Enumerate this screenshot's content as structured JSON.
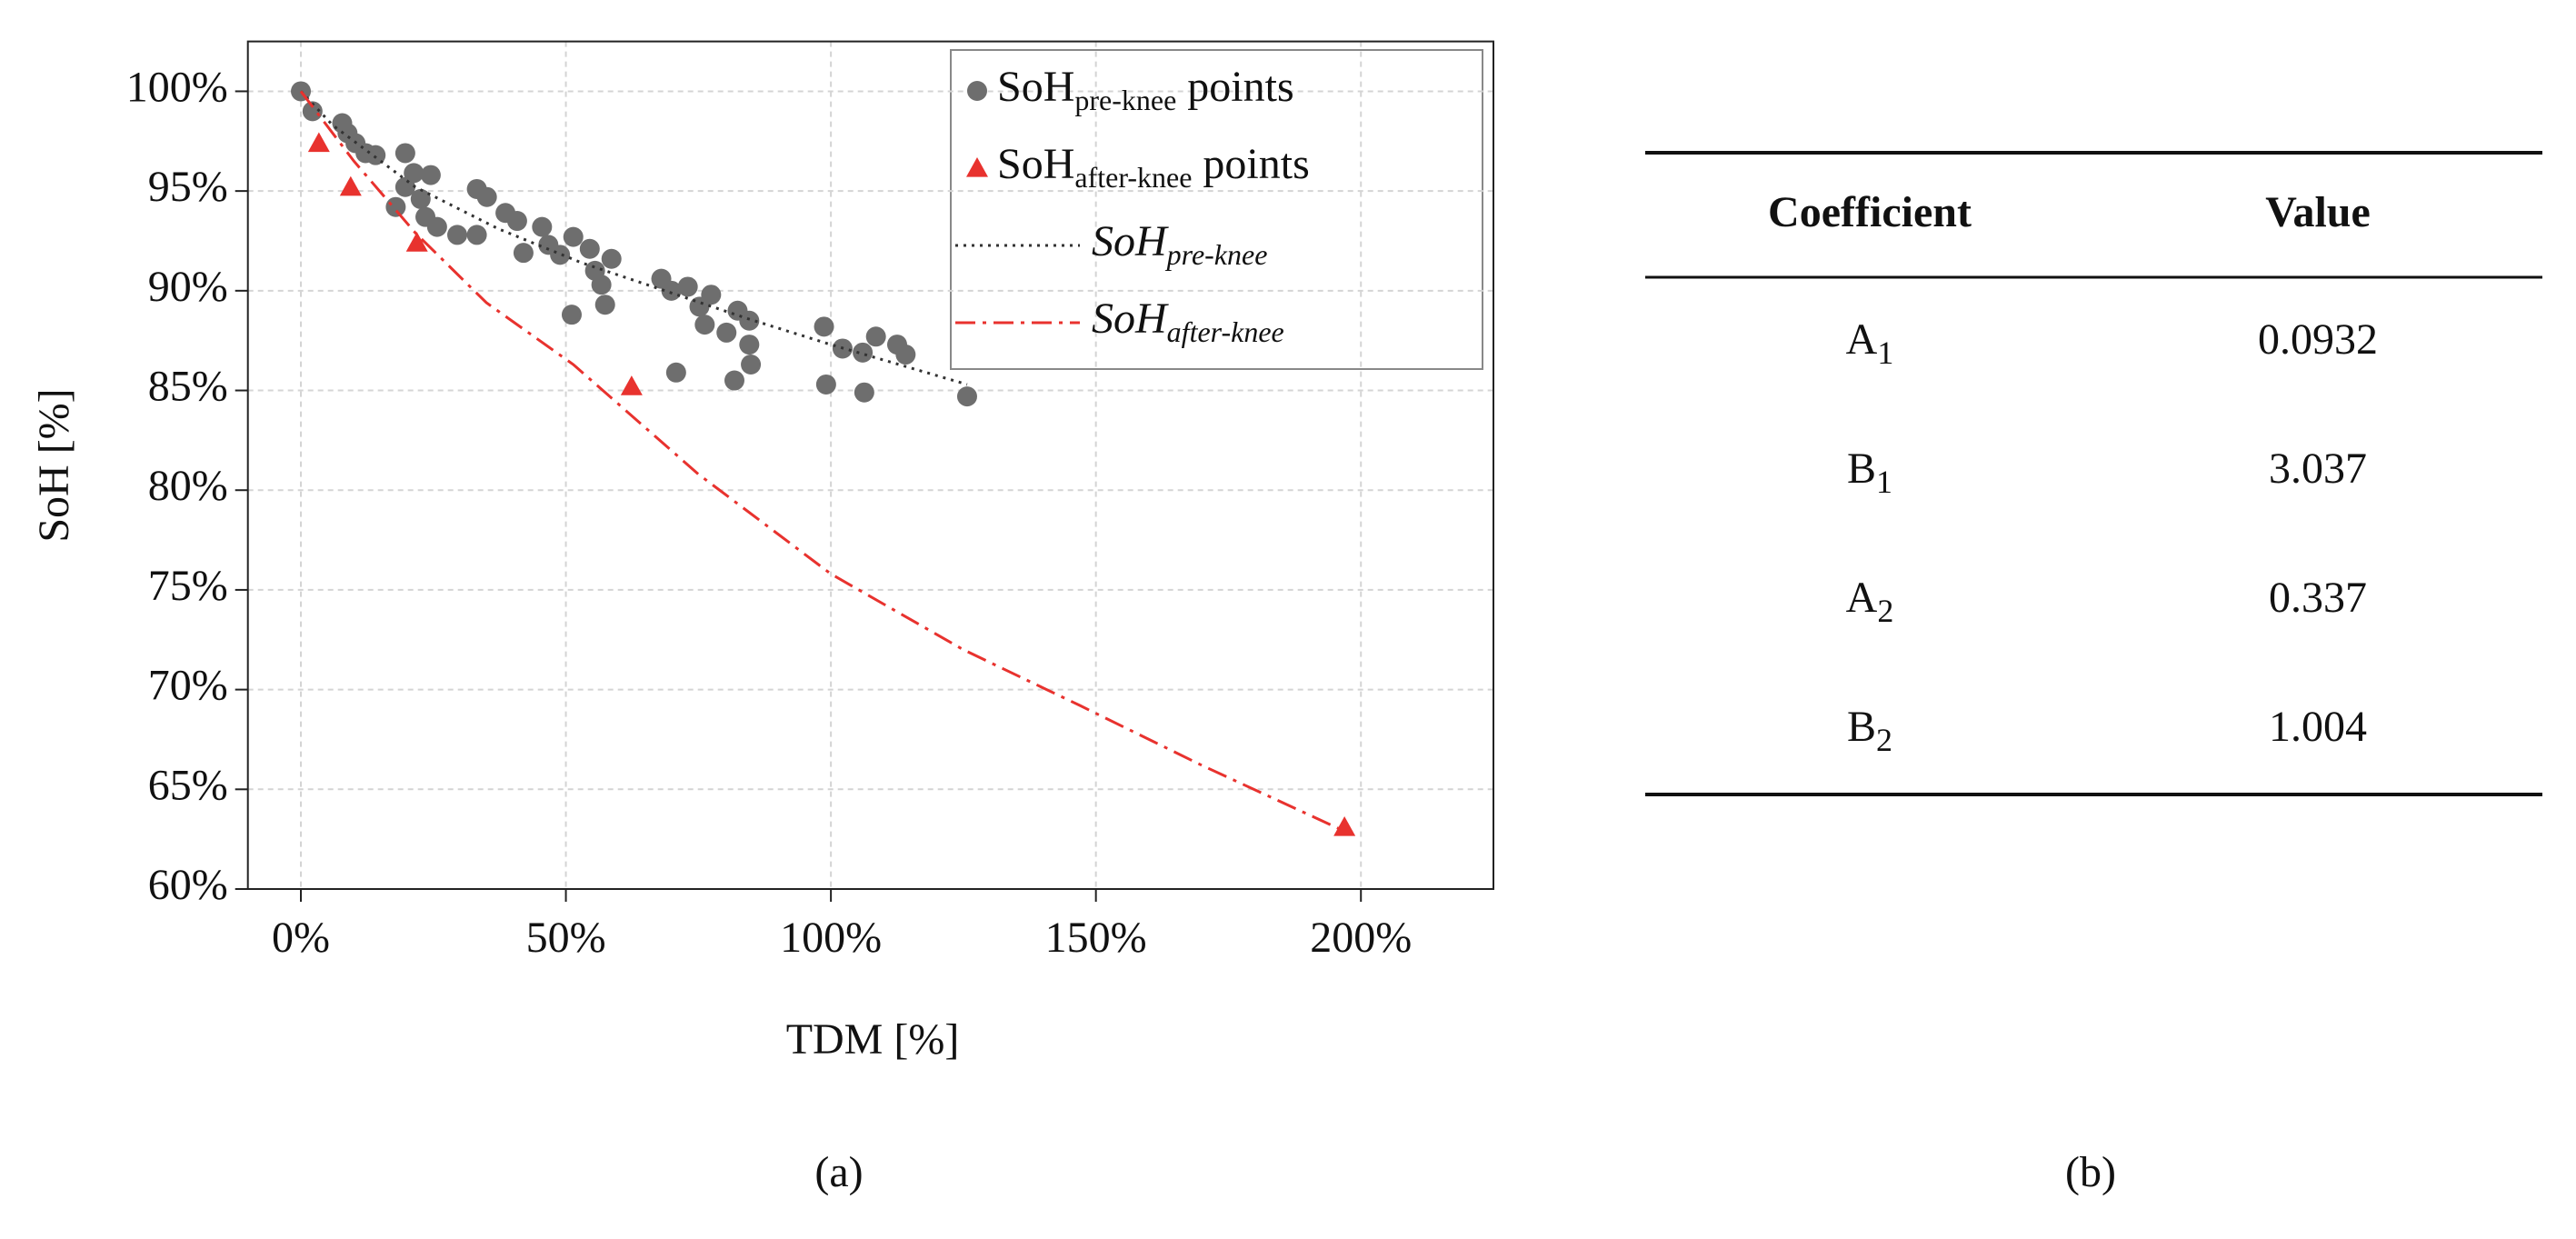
{
  "chart_data": {
    "type": "scatter",
    "xlabel": "TDM [%]",
    "ylabel": "SoH [%]",
    "xlim": [
      -10,
      225
    ],
    "ylim": [
      60,
      102.5
    ],
    "xticks": [
      {
        "value": 0,
        "label": "0%"
      },
      {
        "value": 50,
        "label": "50%"
      },
      {
        "value": 100,
        "label": "100%"
      },
      {
        "value": 150,
        "label": "150%"
      },
      {
        "value": 200,
        "label": "200%"
      }
    ],
    "yticks": [
      {
        "value": 60,
        "label": "60%"
      },
      {
        "value": 65,
        "label": "65%"
      },
      {
        "value": 70,
        "label": "70%"
      },
      {
        "value": 75,
        "label": "75%"
      },
      {
        "value": 80,
        "label": "80%"
      },
      {
        "value": 85,
        "label": "85%"
      },
      {
        "value": 90,
        "label": "90%"
      },
      {
        "value": 95,
        "label": "95%"
      },
      {
        "value": 100,
        "label": "100%"
      }
    ],
    "grid": true,
    "legend": "upper right",
    "series": [
      {
        "name": [
          "SoH",
          "pre-knee",
          " points"
        ],
        "kind": "points",
        "marker": "circle",
        "color": "#6e6e6e",
        "x": [
          0,
          2.2,
          7.8,
          8.8,
          10.3,
          12.2,
          14.1,
          17.9,
          19.7,
          19.7,
          21.3,
          22.6,
          24.5,
          23.5,
          25.7,
          29.5,
          33.2,
          33.2,
          35.1,
          38.6,
          40.8,
          42,
          45.5,
          46.7,
          48.9,
          51.4,
          51.1,
          54.5,
          55.5,
          56.7,
          57.4,
          58.6,
          68,
          69.9,
          70.8,
          73,
          75.2,
          77.4,
          76.2,
          80.3,
          82.4,
          81.8,
          84.6,
          84.6,
          84.9,
          98.7,
          99.1,
          102.2,
          106,
          106.3,
          108.5,
          112.5,
          114.1,
          125.7
        ],
        "values": [
          100,
          99,
          98.4,
          97.9,
          97.4,
          96.9,
          96.8,
          94.2,
          96.9,
          95.2,
          95.9,
          94.6,
          95.8,
          93.7,
          93.2,
          92.8,
          92.8,
          95.1,
          94.7,
          93.9,
          93.5,
          91.9,
          93.2,
          92.3,
          91.8,
          92.7,
          88.8,
          92.1,
          91,
          90.3,
          89.3,
          91.6,
          90.6,
          90,
          85.9,
          90.2,
          89.2,
          89.8,
          88.3,
          87.9,
          89,
          85.5,
          88.5,
          87.3,
          86.3,
          88.2,
          85.3,
          87.1,
          86.9,
          84.9,
          87.7,
          87.3,
          86.8,
          84.7
        ]
      },
      {
        "name": [
          "SoH",
          "after-knee",
          " points"
        ],
        "kind": "points",
        "marker": "triangle",
        "color": "#e8322e",
        "x": [
          3.4,
          9.4,
          21.9,
          62.4,
          196.9
        ],
        "values": [
          97.4,
          95.2,
          92.4,
          85.2,
          63.1
        ]
      },
      {
        "name": [
          "SoH",
          "pre-knee"
        ],
        "kind": "line",
        "dash": "dotted",
        "italic": true,
        "color": "#333333",
        "x": [
          0,
          6,
          21.6,
          37.3,
          53,
          68.7,
          84.3,
          100,
          125.7
        ],
        "values": [
          100,
          98.3,
          95.2,
          93.1,
          91.4,
          90,
          88.6,
          87.3,
          85.3
        ]
      },
      {
        "name": [
          "SoH",
          "after-knee"
        ],
        "kind": "line",
        "dash": "dashdot",
        "italic": true,
        "color": "#e8322e",
        "x": [
          0,
          10,
          21.6,
          35,
          51.4,
          75,
          100,
          125,
          147,
          170,
          196.9
        ],
        "values": [
          100,
          96.5,
          92.9,
          89.4,
          86.3,
          80.8,
          75.8,
          72,
          69.2,
          66.2,
          62.9
        ]
      }
    ]
  },
  "captions": [
    "(a)",
    "(b)"
  ],
  "table": {
    "header": [
      "Coefficient",
      "Value"
    ],
    "rows": [
      [
        [
          "A",
          "1"
        ],
        "0.0932"
      ],
      [
        [
          "B",
          "1"
        ],
        "3.037"
      ],
      [
        [
          "A",
          "2"
        ],
        "0.337"
      ],
      [
        [
          "B",
          "2"
        ],
        "1.004"
      ]
    ]
  }
}
